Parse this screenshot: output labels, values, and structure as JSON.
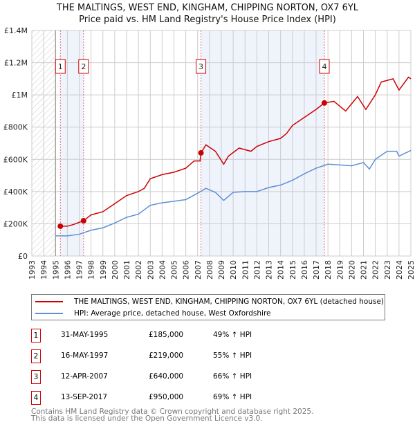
{
  "chart_data": {
    "type": "line",
    "title": "THE MALTINGS, WEST END, KINGHAM, CHIPPING NORTON, OX7 6YL",
    "subtitle": "Price paid vs. HM Land Registry's House Price Index (HPI)",
    "xlim": [
      1993,
      2025
    ],
    "ylim": [
      0,
      1400000
    ],
    "y_ticks": [
      {
        "v": 0,
        "label": "£0"
      },
      {
        "v": 200000,
        "label": "£200K"
      },
      {
        "v": 400000,
        "label": "£400K"
      },
      {
        "v": 600000,
        "label": "£600K"
      },
      {
        "v": 800000,
        "label": "£800K"
      },
      {
        "v": 1000000,
        "label": "£1M"
      },
      {
        "v": 1200000,
        "label": "£1.2M"
      },
      {
        "v": 1400000,
        "label": "£1.4M"
      }
    ],
    "x_ticks": [
      "1993",
      "1994",
      "1995",
      "1996",
      "1997",
      "1998",
      "1999",
      "2000",
      "2001",
      "2002",
      "2003",
      "2004",
      "2005",
      "2006",
      "2007",
      "2008",
      "2009",
      "2010",
      "2011",
      "2012",
      "2013",
      "2014",
      "2015",
      "2016",
      "2017",
      "2018",
      "2019",
      "2020",
      "2021",
      "2022",
      "2023",
      "2024",
      "2025"
    ],
    "grid": true,
    "series": [
      {
        "name": "THE MALTINGS, WEST END, KINGHAM, CHIPPING NORTON, OX7 6YL (detached house)",
        "color": "#cc0000",
        "x": [
          1995.41,
          1996,
          1996.5,
          1997.37,
          1998,
          1999,
          2000,
          2001,
          2002,
          2002.5,
          2003,
          2004,
          2005,
          2006,
          2006.7,
          2007.2,
          2007.28,
          2007.7,
          2008.5,
          2009.2,
          2009.6,
          2010.5,
          2011.5,
          2012,
          2013,
          2014,
          2014.5,
          2015,
          2016,
          2017,
          2017.7,
          2018.5,
          2019.5,
          2020.5,
          2021.2,
          2022,
          2022.5,
          2023.5,
          2024,
          2024.8,
          2025
        ],
        "y": [
          185000,
          185000,
          195000,
          219000,
          255000,
          275000,
          325000,
          375000,
          400000,
          420000,
          480000,
          505000,
          520000,
          545000,
          590000,
          590000,
          640000,
          690000,
          650000,
          570000,
          620000,
          670000,
          650000,
          680000,
          710000,
          730000,
          760000,
          810000,
          860000,
          910000,
          950000,
          960000,
          900000,
          990000,
          910000,
          1000000,
          1080000,
          1100000,
          1030000,
          1110000,
          1100000
        ]
      },
      {
        "name": "HPI: Average price, detached house, West Oxfordshire",
        "color": "#5b8fd4",
        "x": [
          1995,
          1996,
          1997,
          1998,
          1999,
          2000,
          2001,
          2002,
          2003,
          2004,
          2005,
          2006,
          2007,
          2007.7,
          2008.5,
          2009.2,
          2010,
          2011,
          2012,
          2013,
          2014,
          2015,
          2016,
          2017,
          2018,
          2019,
          2020,
          2021,
          2021.5,
          2022,
          2023,
          2023.8,
          2024,
          2025
        ],
        "y": [
          125000,
          125000,
          135000,
          160000,
          175000,
          205000,
          240000,
          260000,
          315000,
          330000,
          340000,
          350000,
          390000,
          420000,
          395000,
          345000,
          395000,
          400000,
          400000,
          425000,
          440000,
          470000,
          510000,
          545000,
          570000,
          565000,
          560000,
          580000,
          540000,
          600000,
          650000,
          650000,
          620000,
          655000
        ]
      }
    ],
    "sales": [
      {
        "n": "1",
        "x": 1995.41,
        "date": "31-MAY-1995",
        "price_value": 185000,
        "price": "£185,000",
        "hpi": "49% ↑ HPI"
      },
      {
        "n": "2",
        "x": 1997.37,
        "date": "16-MAY-1997",
        "price_value": 219000,
        "price": "£219,000",
        "hpi": "55% ↑ HPI"
      },
      {
        "n": "3",
        "x": 2007.28,
        "date": "12-APR-2007",
        "price_value": 640000,
        "price": "£640,000",
        "hpi": "66% ↑ HPI"
      },
      {
        "n": "4",
        "x": 2017.7,
        "date": "13-SEP-2017",
        "price_value": 950000,
        "price": "£950,000",
        "hpi": "69% ↑ HPI"
      }
    ],
    "legend": "bottom"
  },
  "footer": {
    "line1": "Contains HM Land Registry data © Crown copyright and database right 2025.",
    "line2": "This data is licensed under the Open Government Licence v3.0."
  }
}
